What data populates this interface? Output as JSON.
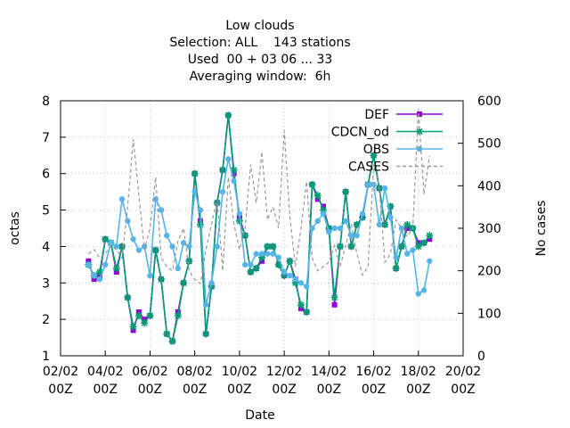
{
  "chart_data": {
    "type": "line",
    "title": [
      "Low clouds",
      "Selection: ALL    143 stations",
      "Used  00 + 03 06 ... 33",
      "Averaging window:  6h"
    ],
    "x_label": "Date",
    "y_label": "octas",
    "y2_label": "No cases",
    "x": [
      3.25,
      3.5,
      3.75,
      4,
      4.25,
      4.5,
      4.75,
      5,
      5.25,
      5.5,
      5.75,
      6,
      6.25,
      6.5,
      6.75,
      7,
      7.25,
      7.5,
      7.75,
      8,
      8.25,
      8.5,
      8.75,
      9,
      9.25,
      9.5,
      9.75,
      10,
      10.25,
      10.5,
      10.75,
      11,
      11.25,
      11.5,
      11.75,
      12,
      12.25,
      12.5,
      12.75,
      13,
      13.25,
      13.5,
      13.75,
      14,
      14.25,
      14.5,
      14.75,
      15,
      15.25,
      15.5,
      15.75,
      16,
      16.25,
      16.5,
      16.75,
      17,
      17.25,
      17.5,
      17.75,
      18,
      18.25,
      18.5
    ],
    "xlim": [
      2,
      20
    ],
    "xticks": [
      {
        "value": 2,
        "label": "02/02 00Z"
      },
      {
        "value": 4,
        "label": "04/02 00Z"
      },
      {
        "value": 6,
        "label": "06/02 00Z"
      },
      {
        "value": 8,
        "label": "08/02 00Z"
      },
      {
        "value": 10,
        "label": "10/02 00Z"
      },
      {
        "value": 12,
        "label": "12/02 00Z"
      },
      {
        "value": 14,
        "label": "14/02 00Z"
      },
      {
        "value": 16,
        "label": "16/02 00Z"
      },
      {
        "value": 18,
        "label": "18/02 00Z"
      },
      {
        "value": 20,
        "label": "20/02 00Z"
      }
    ],
    "ylim": [
      1,
      8
    ],
    "yticks": [
      1,
      2,
      3,
      4,
      5,
      6,
      7,
      8
    ],
    "y2lim": [
      0,
      600
    ],
    "y2ticks": [
      0,
      100,
      200,
      300,
      400,
      500,
      600
    ],
    "grid": true,
    "series": [
      {
        "name": "DEF",
        "color": "#9400d3",
        "marker": "square",
        "values": [
          3.6,
          3.1,
          3.2,
          4.2,
          4.1,
          3.3,
          4.0,
          2.6,
          1.7,
          2.2,
          2.0,
          2.1,
          3.9,
          3.1,
          1.6,
          1.4,
          2.2,
          3.0,
          3.6,
          6.0,
          4.7,
          1.6,
          2.9,
          5.2,
          6.1,
          7.6,
          6.0,
          4.8,
          4.3,
          3.3,
          3.4,
          3.6,
          4.0,
          4.0,
          3.5,
          3.2,
          3.6,
          3.1,
          2.3,
          2.2,
          5.7,
          5.3,
          5.1,
          4.5,
          2.4,
          4.0,
          5.5,
          4.0,
          4.6,
          4.8,
          5.7,
          6.5,
          5.6,
          4.6,
          5.1,
          3.4,
          4.0,
          4.5,
          4.5,
          4.1,
          4.1,
          4.2
        ]
      },
      {
        "name": "CDCN_od",
        "color": "#009e73",
        "marker": "star",
        "values": [
          3.5,
          3.2,
          3.3,
          4.2,
          4.1,
          3.4,
          4.0,
          2.6,
          1.8,
          2.1,
          1.9,
          2.1,
          3.9,
          3.1,
          1.6,
          1.4,
          2.1,
          3.0,
          3.6,
          6.0,
          4.6,
          1.6,
          2.9,
          5.2,
          6.1,
          7.6,
          6.1,
          4.7,
          4.3,
          3.3,
          3.4,
          3.7,
          4.0,
          4.0,
          3.5,
          3.2,
          3.6,
          3.0,
          2.4,
          2.2,
          5.7,
          5.4,
          5.0,
          4.5,
          2.6,
          4.0,
          5.5,
          4.0,
          4.6,
          4.8,
          5.7,
          6.5,
          5.6,
          4.6,
          5.1,
          3.4,
          4.0,
          4.6,
          4.5,
          4.0,
          4.1,
          4.3
        ]
      },
      {
        "name": "OBS",
        "color": "#56b4e9",
        "marker": "circle",
        "values": [
          3.5,
          3.2,
          3.1,
          3.5,
          4.1,
          4.0,
          5.3,
          4.7,
          4.2,
          3.9,
          4.0,
          3.2,
          5.3,
          5.0,
          4.3,
          4.0,
          3.4,
          4.1,
          4.0,
          5.5,
          5.0,
          2.4,
          3.0,
          4.0,
          5.5,
          6.4,
          5.8,
          4.9,
          3.5,
          3.5,
          3.8,
          3.8,
          3.8,
          3.8,
          3.7,
          3.3,
          3.2,
          3.1,
          3.0,
          2.9,
          4.5,
          4.7,
          4.9,
          4.4,
          4.5,
          4.5,
          4.7,
          4.3,
          4.3,
          4.9,
          5.7,
          5.7,
          4.6,
          5.6,
          4.8,
          3.7,
          4.5,
          3.8,
          3.9,
          2.7,
          2.8,
          3.6
        ]
      },
      {
        "name": "CASES",
        "color": "#999999",
        "axis": "y2",
        "dashed": true,
        "values": [
          240,
          250,
          230,
          240,
          260,
          250,
          230,
          350,
          510,
          380,
          250,
          300,
          420,
          230,
          210,
          200,
          270,
          300,
          200,
          180,
          170,
          250,
          310,
          370,
          200,
          420,
          310,
          250,
          300,
          450,
          360,
          480,
          320,
          350,
          300,
          530,
          330,
          210,
          300,
          410,
          230,
          200,
          210,
          220,
          260,
          210,
          260,
          310,
          240,
          190,
          210,
          450,
          400,
          220,
          240,
          320,
          300,
          280,
          300,
          580,
          380,
          470
        ]
      }
    ],
    "legend": "top-right"
  }
}
